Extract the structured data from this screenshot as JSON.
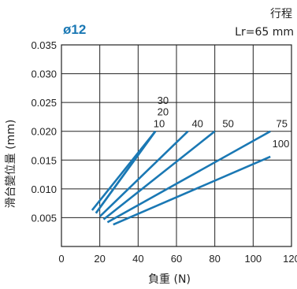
{
  "chart_data": {
    "type": "line",
    "title": "ø12",
    "stroke_label": "行程",
    "stroke_value": "Lr=65 mm",
    "xlabel": "負重 (N)",
    "ylabel": "滑台變位量 (mm)",
    "xlim": [
      0,
      120
    ],
    "ylim": [
      0,
      0.035
    ],
    "x_ticks": [
      "0",
      "20",
      "40",
      "60",
      "80",
      "100",
      "120"
    ],
    "x_tick_values": [
      0,
      20,
      40,
      60,
      80,
      100,
      120
    ],
    "y_ticks": [
      "0.005",
      "0.010",
      "0.015",
      "0.020",
      "0.025",
      "0.030",
      "0.035"
    ],
    "y_tick_values": [
      0.005,
      0.01,
      0.015,
      0.02,
      0.025,
      0.03,
      0.035
    ],
    "grid": true,
    "line_color": "#1a78b4",
    "series": [
      {
        "name": "10",
        "x": [
          16,
          49
        ],
        "y": [
          0.0063,
          0.02
        ]
      },
      {
        "name": "20",
        "x": [
          18,
          49
        ],
        "y": [
          0.0058,
          0.02
        ]
      },
      {
        "name": "30",
        "x": [
          18,
          49
        ],
        "y": [
          0.0058,
          0.02
        ]
      },
      {
        "name": "40",
        "x": [
          20,
          66
        ],
        "y": [
          0.0052,
          0.02
        ]
      },
      {
        "name": "50",
        "x": [
          22,
          80
        ],
        "y": [
          0.0047,
          0.02
        ]
      },
      {
        "name": "75",
        "x": [
          24,
          109
        ],
        "y": [
          0.0042,
          0.02
        ]
      },
      {
        "name": "100",
        "x": [
          27,
          109
        ],
        "y": [
          0.0038,
          0.0156
        ]
      }
    ],
    "series_labels": [
      {
        "text": "30",
        "x": 50,
        "y": 0.0242
      },
      {
        "text": "20",
        "x": 50,
        "y": 0.0222
      },
      {
        "text": "10",
        "x": 48,
        "y": 0.0202
      },
      {
        "text": "40",
        "x": 68,
        "y": 0.0202
      },
      {
        "text": "50",
        "x": 84,
        "y": 0.0202
      },
      {
        "text": "75",
        "x": 112,
        "y": 0.0202
      },
      {
        "text": "100",
        "x": 110,
        "y": 0.0167
      }
    ]
  }
}
